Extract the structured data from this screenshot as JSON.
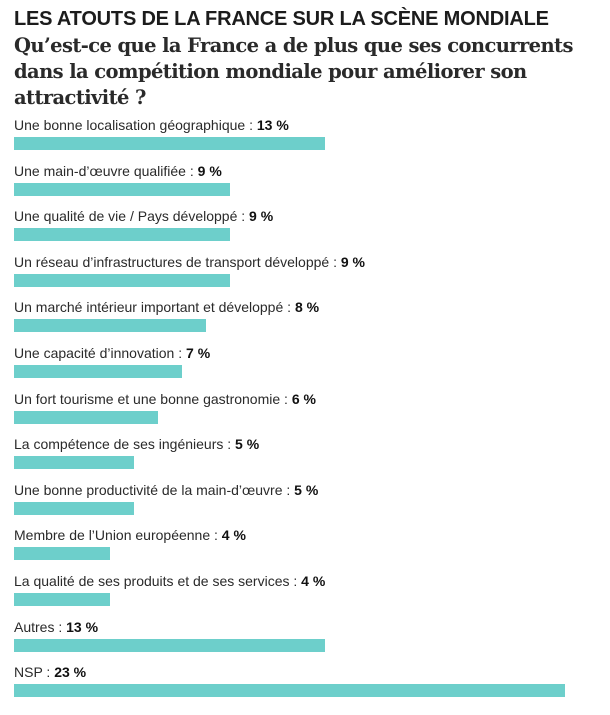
{
  "chart_data": {
    "type": "bar",
    "orientation": "horizontal",
    "title": "LES ATOUTS DE LA FRANCE SUR LA SCÈNE MONDIALE",
    "subtitle": "Qu’est-ce que la France a de plus que ses concurrents dans la compétition mondiale pour améliorer son attractivité ?",
    "unit": "%",
    "bar_color": "#6dcfcb",
    "categories": [
      "Une bonne localisation géographique",
      "Une main-d’œuvre qualifiée",
      "Une qualité de vie / Pays développé",
      "Un réseau d’infrastructures de transport développé",
      "Un marché intérieur important et développé",
      "Une capacité d’innovation",
      "Un fort tourisme et une bonne gastronomie",
      "La compétence de ses ingénieurs",
      "Une bonne productivité de la main-d’œuvre",
      "Membre de l’Union européenne",
      "La qualité de ses produits et de ses services",
      "Autres",
      "NSP"
    ],
    "values": [
      13,
      9,
      9,
      9,
      8,
      7,
      6,
      5,
      5,
      4,
      4,
      13,
      23
    ],
    "value_labels": [
      "13 %",
      "9 %",
      "9 %",
      "9 %",
      "8 %",
      "7 %",
      "6 %",
      "5 %",
      "5 %",
      "4 %",
      "4 %",
      "13 %",
      "23 %"
    ]
  }
}
